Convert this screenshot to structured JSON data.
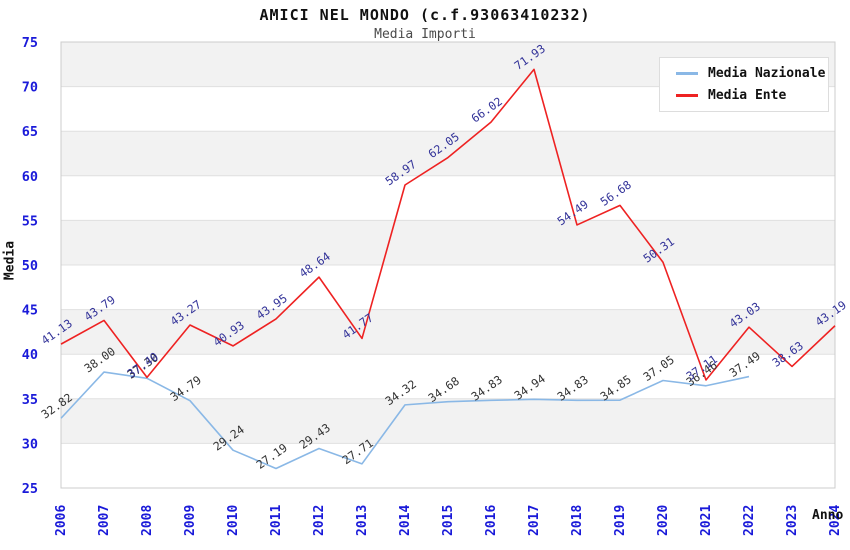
{
  "header": {
    "title": "AMICI NEL MONDO (c.f.93063410232)",
    "subtitle": "Media Importi"
  },
  "chart_data": {
    "type": "line",
    "title": "AMICI NEL MONDO (c.f.93063410232)",
    "subtitle": "Media Importi",
    "xlabel": "Anno",
    "ylabel": "Media",
    "ylim": [
      25,
      75
    ],
    "yticks": [
      25,
      30,
      35,
      40,
      45,
      50,
      55,
      60,
      65,
      70,
      75
    ],
    "grid": "horizontal-bands-alternating",
    "legend_position": "top-right",
    "categories": [
      "2006",
      "2007",
      "2008",
      "2009",
      "2010",
      "2011",
      "2012",
      "2013",
      "2014",
      "2015",
      "2016",
      "2017",
      "2018",
      "2019",
      "2020",
      "2021",
      "2022",
      "2023",
      "2024"
    ],
    "series": [
      {
        "name": "Media Nazionale",
        "color": "#8ab8e6",
        "label_color": "#333333",
        "values": [
          32.82,
          38.0,
          37.3,
          34.79,
          29.24,
          27.19,
          29.43,
          27.71,
          34.32,
          34.68,
          34.83,
          34.94,
          34.83,
          34.85,
          37.05,
          36.46,
          37.49,
          null,
          null
        ]
      },
      {
        "name": "Media Ente",
        "color": "#ee2222",
        "label_color": "#333399",
        "values": [
          41.13,
          43.79,
          37.4,
          43.27,
          40.93,
          43.95,
          48.64,
          41.77,
          58.97,
          62.05,
          66.02,
          71.93,
          54.49,
          56.68,
          50.31,
          37.11,
          43.03,
          38.63,
          43.19
        ]
      }
    ]
  },
  "colors": {
    "band_gray": "#f2f2f2",
    "band_white": "#ffffff",
    "gridline": "#e0e0e0",
    "plot_border": "#cccccc",
    "axis_tick_text": "#1a1ad9",
    "title_text": "#111111",
    "subtitle_text": "#4a4a4a"
  }
}
